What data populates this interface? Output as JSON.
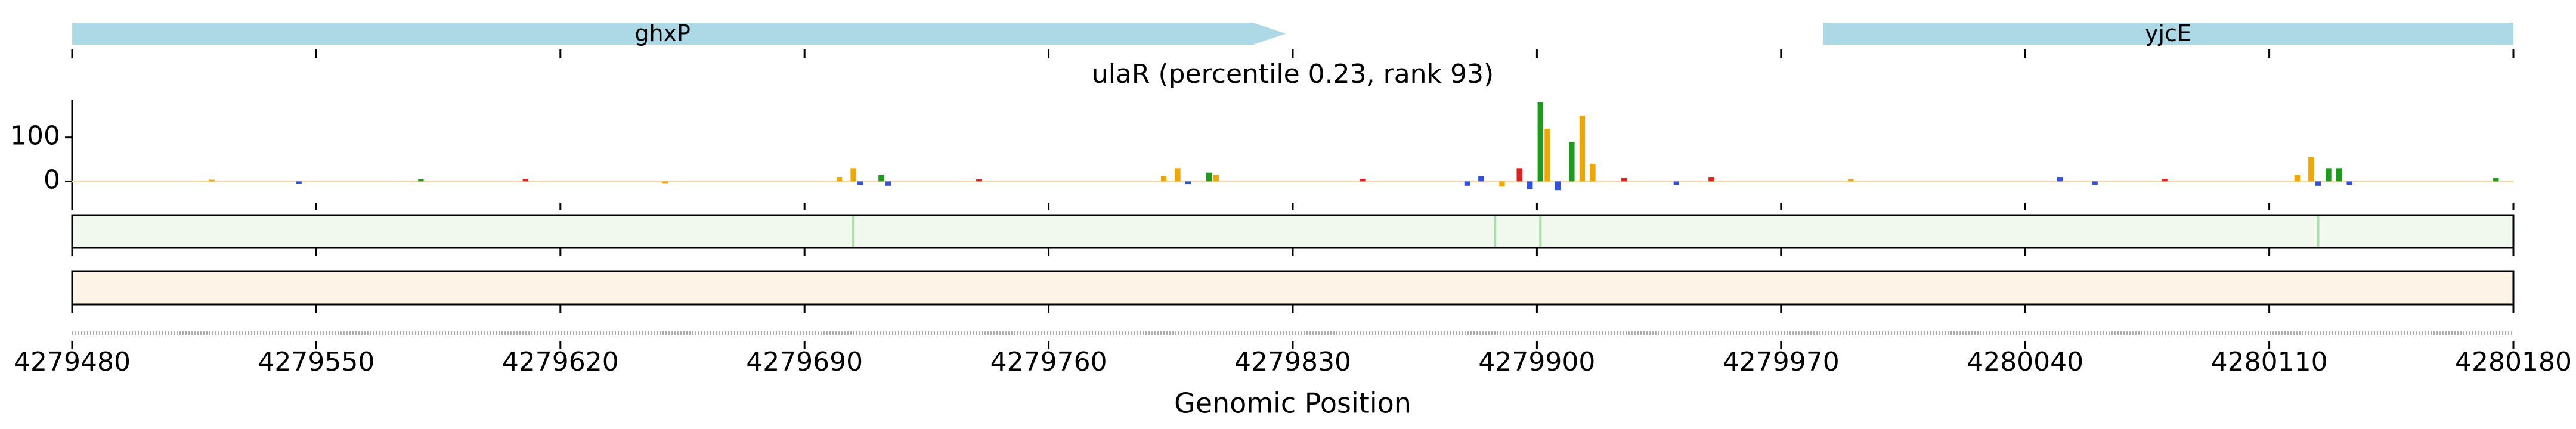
{
  "chart_data": {
    "type": "logo",
    "title": "ulaR (percentile 0.23, rank 93)",
    "xlabel": "Genomic Position",
    "xlim": [
      4279480,
      4280180
    ],
    "xticks": [
      4279480,
      4279550,
      4279620,
      4279690,
      4279760,
      4279830,
      4279900,
      4279970,
      4280040,
      4280110,
      4280180
    ],
    "ylim": [
      -55,
      185
    ],
    "yticks": [
      0,
      100
    ],
    "genes": [
      {
        "name": "ghxP",
        "start": 4279480,
        "end": 4279828,
        "color": "#add8e6"
      },
      {
        "name": "yjcE",
        "start": 4279982,
        "end": 4280180,
        "color": "#add8e6"
      }
    ],
    "base_colors": {
      "A": "#1a9e1a",
      "C": "#3050e0",
      "G": "#f0a800",
      "T": "#e02020"
    },
    "logo": {
      "positions": [
        4279520,
        4279545,
        4279580,
        4279610,
        4279650,
        4279700,
        4279704,
        4279706,
        4279712,
        4279714,
        4279740,
        4279793,
        4279797,
        4279800,
        4279806,
        4279808,
        4279850,
        4279880,
        4279884,
        4279890,
        4279895,
        4279898,
        4279901,
        4279903,
        4279906,
        4279910,
        4279913,
        4279916,
        4279925,
        4279940,
        4279950,
        4279990,
        4280050,
        4280060,
        4280080,
        4280118,
        4280122,
        4280124,
        4280127,
        4280130,
        4280133,
        4280175
      ],
      "bases": [
        "G",
        "C",
        "A",
        "T",
        "G",
        "G",
        "G",
        "C",
        "A",
        "C",
        "T",
        "G",
        "G",
        "C",
        "A",
        "G",
        "T",
        "C",
        "C",
        "G",
        "T",
        "C",
        "A",
        "G",
        "C",
        "A",
        "G",
        "G",
        "T",
        "C",
        "T",
        "G",
        "C",
        "C",
        "T",
        "G",
        "G",
        "C",
        "A",
        "A",
        "C",
        "A"
      ],
      "values": [
        4,
        -5,
        5,
        6,
        -4,
        10,
        30,
        -8,
        15,
        -10,
        5,
        12,
        30,
        -6,
        20,
        15,
        6,
        -10,
        12,
        -12,
        30,
        -18,
        180,
        120,
        -20,
        90,
        150,
        40,
        8,
        -8,
        10,
        5,
        10,
        -8,
        6,
        15,
        55,
        -10,
        30,
        30,
        -8,
        8
      ]
    },
    "track1": {
      "color": "#f1f8ee",
      "peak_color": "#7fc97f",
      "peaks": [
        4279704,
        4279888,
        4279901,
        4280124
      ]
    },
    "track2": {
      "color": "#fdf3e6"
    }
  }
}
